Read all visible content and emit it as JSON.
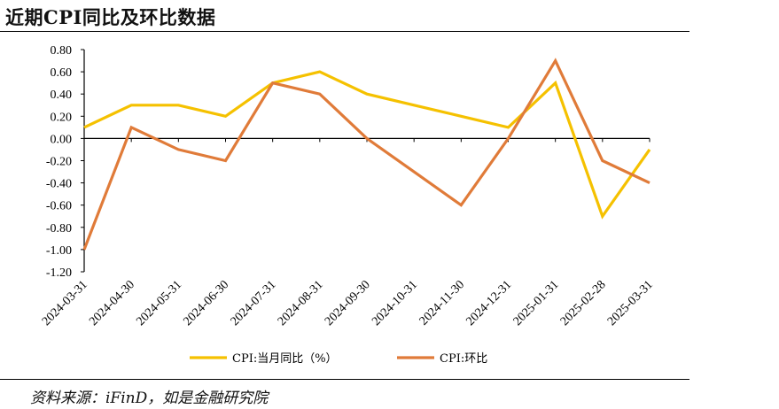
{
  "header": {
    "title": "近期CPI同比及环比数据"
  },
  "footer": {
    "source": "资料来源：iFinD，如是金融研究院"
  },
  "chart_data": {
    "type": "line",
    "title": "近期CPI同比及环比数据",
    "categories": [
      "2024-03-31",
      "2024-04-30",
      "2024-05-31",
      "2024-06-30",
      "2024-07-31",
      "2024-08-31",
      "2024-09-30",
      "2024-10-31",
      "2024-11-30",
      "2024-12-31",
      "2025-01-31",
      "2025-02-28",
      "2025-03-31"
    ],
    "series": [
      {
        "name": "CPI:当月同比（%）",
        "color": "#F5C100",
        "values": [
          0.1,
          0.3,
          0.3,
          0.2,
          0.5,
          0.6,
          0.4,
          0.3,
          0.2,
          0.1,
          0.5,
          -0.7,
          -0.1
        ]
      },
      {
        "name": "CPI:环比",
        "color": "#E07B39",
        "values": [
          -1.0,
          0.1,
          -0.1,
          -0.2,
          0.5,
          0.4,
          0.0,
          -0.3,
          -0.6,
          0.0,
          0.7,
          -0.2,
          -0.4
        ]
      }
    ],
    "yticks": [
      "0.80",
      "0.60",
      "0.40",
      "0.20",
      "0.00",
      "-0.20",
      "-0.40",
      "-0.60",
      "-0.80",
      "-1.00",
      "-1.20"
    ],
    "ylim": [
      -1.2,
      0.8
    ],
    "xlabel": "",
    "ylabel": "",
    "legend_position": "bottom",
    "grid": false
  }
}
